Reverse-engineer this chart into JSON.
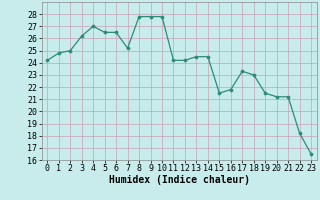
{
  "x": [
    0,
    1,
    2,
    3,
    4,
    5,
    6,
    7,
    8,
    9,
    10,
    11,
    12,
    13,
    14,
    15,
    16,
    17,
    18,
    19,
    20,
    21,
    22,
    23
  ],
  "y": [
    24.2,
    24.8,
    25.0,
    26.2,
    27.0,
    26.5,
    26.5,
    25.2,
    27.8,
    27.8,
    27.8,
    24.2,
    24.2,
    24.5,
    24.5,
    21.5,
    21.8,
    23.3,
    23.0,
    21.5,
    21.2,
    21.2,
    18.2,
    16.5
  ],
  "xlim": [
    -0.5,
    23.5
  ],
  "ylim": [
    16,
    29
  ],
  "yticks": [
    16,
    17,
    18,
    19,
    20,
    21,
    22,
    23,
    24,
    25,
    26,
    27,
    28
  ],
  "xticks": [
    0,
    1,
    2,
    3,
    4,
    5,
    6,
    7,
    8,
    9,
    10,
    11,
    12,
    13,
    14,
    15,
    16,
    17,
    18,
    19,
    20,
    21,
    22,
    23
  ],
  "xlabel": "Humidex (Indice chaleur)",
  "line_color": "#2d8b78",
  "marker_color": "#2d8b78",
  "bg_color": "#c8ecec",
  "grid_color": "#c8a0b4",
  "xlabel_fontsize": 7,
  "tick_fontsize": 6
}
